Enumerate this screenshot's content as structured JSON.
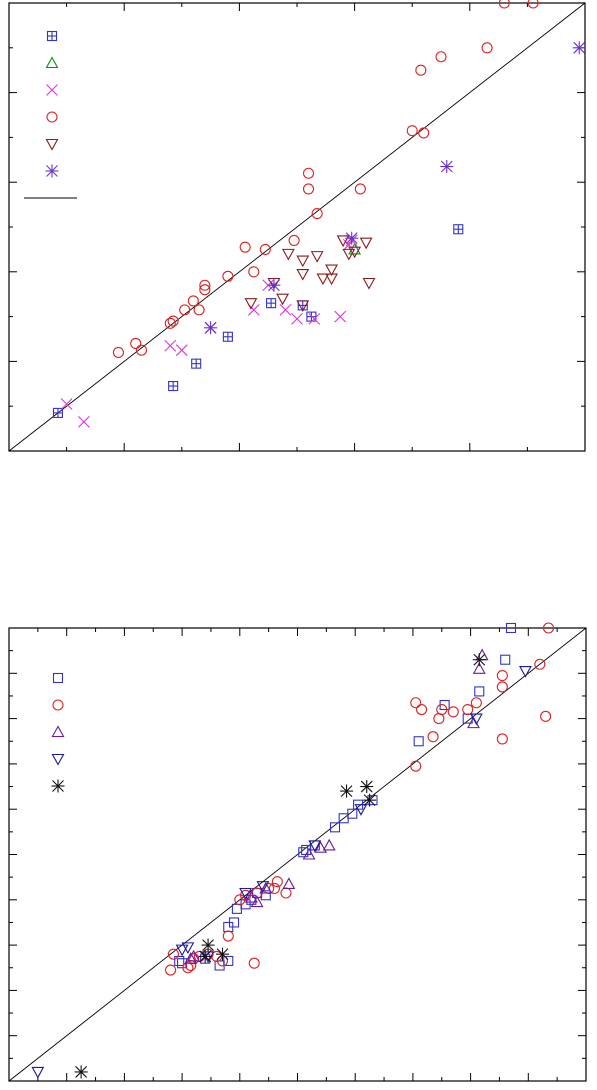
{
  "chart_data": [
    {
      "type": "scatter",
      "title": "",
      "xlabel": "",
      "ylabel": "",
      "xlim": [
        0,
        10
      ],
      "ylim": [
        0,
        10
      ],
      "grid": false,
      "legend_position": "top-left",
      "reference_line": [
        [
          0,
          0
        ],
        [
          10,
          10
        ]
      ],
      "series": [
        {
          "marker": "boxplus",
          "color": "#3333cc",
          "points": [
            [
              0.85,
              0.85
            ],
            [
              2.85,
              1.45
            ],
            [
              3.25,
              1.95
            ],
            [
              3.8,
              2.55
            ],
            [
              4.55,
              3.3
            ],
            [
              5.1,
              3.25
            ],
            [
              5.25,
              3.0
            ],
            [
              7.8,
              4.95
            ]
          ]
        },
        {
          "marker": "triangle",
          "color": "#009900",
          "points": [
            [
              6.0,
              4.5
            ]
          ]
        },
        {
          "marker": "x",
          "color": "#dd33dd",
          "points": [
            [
              1.0,
              1.05
            ],
            [
              1.3,
              0.65
            ],
            [
              2.8,
              2.35
            ],
            [
              3.0,
              2.25
            ],
            [
              3.5,
              2.75
            ],
            [
              4.25,
              3.15
            ],
            [
              4.5,
              3.7
            ],
            [
              4.8,
              3.15
            ],
            [
              5.0,
              2.95
            ],
            [
              5.3,
              2.95
            ],
            [
              5.75,
              3.0
            ],
            [
              5.95,
              4.7
            ],
            [
              5.9,
              4.6
            ]
          ]
        },
        {
          "marker": "circle",
          "color": "#dd2222",
          "points": [
            [
              1.9,
              2.2
            ],
            [
              2.2,
              2.4
            ],
            [
              2.3,
              2.25
            ],
            [
              2.8,
              2.85
            ],
            [
              2.85,
              2.9
            ],
            [
              3.05,
              3.15
            ],
            [
              3.2,
              3.35
            ],
            [
              3.3,
              3.15
            ],
            [
              3.4,
              3.6
            ],
            [
              3.4,
              3.7
            ],
            [
              3.8,
              3.9
            ],
            [
              4.1,
              4.55
            ],
            [
              4.25,
              4.0
            ],
            [
              4.45,
              4.5
            ],
            [
              4.95,
              4.7
            ],
            [
              5.2,
              5.85
            ],
            [
              5.2,
              6.2
            ],
            [
              5.35,
              5.3
            ],
            [
              6.1,
              5.85
            ],
            [
              7.0,
              7.15
            ],
            [
              7.15,
              8.5
            ],
            [
              7.2,
              7.1
            ],
            [
              7.5,
              8.8
            ],
            [
              8.3,
              9.0
            ],
            [
              8.6,
              10.0
            ],
            [
              9.1,
              10.0
            ]
          ]
        },
        {
          "marker": "triangle-down",
          "color": "#8b1a1a",
          "points": [
            [
              4.2,
              3.3
            ],
            [
              4.6,
              3.75
            ],
            [
              4.75,
              3.4
            ],
            [
              4.85,
              4.4
            ],
            [
              5.1,
              4.25
            ],
            [
              5.1,
              3.95
            ],
            [
              5.1,
              3.25
            ],
            [
              5.35,
              4.35
            ],
            [
              5.45,
              3.85
            ],
            [
              5.6,
              4.05
            ],
            [
              5.8,
              4.7
            ],
            [
              5.9,
              4.4
            ],
            [
              6.0,
              4.45
            ],
            [
              6.2,
              4.65
            ],
            [
              6.25,
              3.75
            ],
            [
              5.6,
              3.85
            ]
          ]
        },
        {
          "marker": "asterisk",
          "color": "#6633cc",
          "points": [
            [
              3.5,
              2.75
            ],
            [
              4.6,
              3.7
            ],
            [
              5.95,
              4.75
            ],
            [
              7.6,
              6.35
            ],
            [
              9.9,
              9.0
            ]
          ]
        }
      ]
    },
    {
      "type": "scatter",
      "title": "",
      "xlabel": "",
      "ylabel": "",
      "xlim": [
        0,
        10
      ],
      "ylim": [
        0,
        10
      ],
      "grid": false,
      "legend_position": "top-left",
      "reference_line": [
        [
          0,
          0
        ],
        [
          10,
          10
        ]
      ],
      "series": [
        {
          "marker": "square",
          "color": "#3333cc",
          "points": [
            [
              2.95,
              2.65
            ],
            [
              3.0,
              2.6
            ],
            [
              3.4,
              2.7
            ],
            [
              3.65,
              2.55
            ],
            [
              3.8,
              2.65
            ],
            [
              3.8,
              3.4
            ],
            [
              3.9,
              3.5
            ],
            [
              3.95,
              3.8
            ],
            [
              4.1,
              3.9
            ],
            [
              4.2,
              4.0
            ],
            [
              4.3,
              4.15
            ],
            [
              4.45,
              4.1
            ],
            [
              5.1,
              5.05
            ],
            [
              5.15,
              5.1
            ],
            [
              5.3,
              5.2
            ],
            [
              5.65,
              5.6
            ],
            [
              5.8,
              5.8
            ],
            [
              5.95,
              5.9
            ],
            [
              6.05,
              6.1
            ],
            [
              6.3,
              6.2
            ],
            [
              7.1,
              7.5
            ],
            [
              7.55,
              8.3
            ],
            [
              7.95,
              8.0
            ],
            [
              8.15,
              8.6
            ],
            [
              8.6,
              9.3
            ],
            [
              8.7,
              10.0
            ]
          ]
        },
        {
          "marker": "circle",
          "color": "#dd2222",
          "points": [
            [
              2.8,
              2.45
            ],
            [
              2.85,
              2.8
            ],
            [
              3.1,
              2.5
            ],
            [
              3.15,
              2.55
            ],
            [
              3.2,
              2.7
            ],
            [
              3.3,
              2.75
            ],
            [
              3.45,
              2.8
            ],
            [
              3.6,
              2.75
            ],
            [
              3.7,
              2.65
            ],
            [
              3.8,
              3.2
            ],
            [
              4.0,
              4.0
            ],
            [
              4.1,
              4.1
            ],
            [
              4.25,
              2.6
            ],
            [
              4.3,
              4.15
            ],
            [
              4.5,
              4.25
            ],
            [
              4.6,
              4.25
            ],
            [
              4.65,
              4.4
            ],
            [
              4.8,
              4.15
            ],
            [
              7.05,
              6.95
            ],
            [
              7.05,
              8.35
            ],
            [
              7.15,
              8.2
            ],
            [
              7.35,
              7.6
            ],
            [
              7.45,
              8.0
            ],
            [
              7.5,
              8.2
            ],
            [
              7.7,
              8.15
            ],
            [
              7.95,
              8.2
            ],
            [
              8.1,
              8.35
            ],
            [
              8.55,
              7.55
            ],
            [
              8.55,
              8.7
            ],
            [
              8.55,
              8.95
            ],
            [
              9.2,
              9.2
            ],
            [
              9.3,
              8.05
            ],
            [
              9.35,
              10.0
            ]
          ]
        },
        {
          "marker": "triangle",
          "color": "#6a1a9a",
          "points": [
            [
              3.15,
              2.7
            ],
            [
              3.2,
              2.75
            ],
            [
              4.2,
              4.05
            ],
            [
              4.3,
              3.95
            ],
            [
              4.45,
              4.25
            ],
            [
              4.85,
              4.35
            ],
            [
              5.2,
              5.0
            ],
            [
              5.4,
              5.15
            ],
            [
              5.55,
              5.2
            ],
            [
              8.05,
              7.9
            ],
            [
              8.15,
              9.1
            ],
            [
              8.2,
              9.4
            ]
          ]
        },
        {
          "marker": "triangle-down",
          "color": "#1a1a9a",
          "points": [
            [
              0.5,
              0.2
            ],
            [
              3.0,
              2.9
            ],
            [
              3.1,
              2.95
            ],
            [
              3.45,
              2.75
            ],
            [
              4.1,
              4.15
            ],
            [
              4.4,
              4.3
            ],
            [
              5.3,
              5.2
            ],
            [
              6.1,
              6.0
            ],
            [
              8.1,
              8.0
            ],
            [
              8.95,
              9.05
            ]
          ]
        },
        {
          "marker": "asterisk",
          "color": "#111111",
          "points": [
            [
              1.25,
              0.2
            ],
            [
              3.4,
              2.75
            ],
            [
              3.45,
              3.0
            ],
            [
              3.7,
              2.8
            ],
            [
              5.85,
              6.4
            ],
            [
              6.2,
              6.5
            ],
            [
              6.25,
              6.2
            ],
            [
              8.15,
              9.3
            ]
          ]
        }
      ]
    }
  ]
}
